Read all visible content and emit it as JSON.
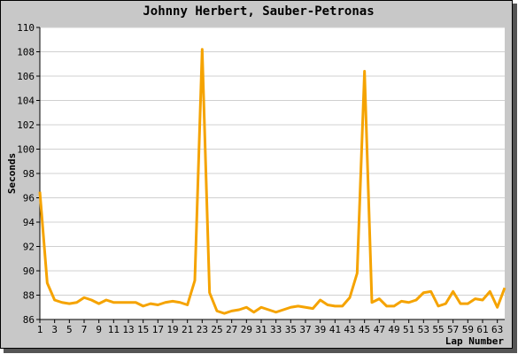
{
  "chart_data": {
    "type": "line",
    "title": "Johnny Herbert, Sauber-Petronas",
    "x_label": "Lap Number",
    "y_label": "Seconds",
    "x": [
      1,
      2,
      3,
      4,
      5,
      6,
      7,
      8,
      9,
      10,
      11,
      12,
      13,
      14,
      15,
      16,
      17,
      18,
      19,
      20,
      21,
      22,
      23,
      24,
      25,
      26,
      27,
      28,
      29,
      30,
      31,
      32,
      33,
      34,
      35,
      36,
      37,
      38,
      39,
      40,
      41,
      42,
      43,
      44,
      45,
      46,
      47,
      48,
      49,
      50,
      51,
      52,
      53,
      54,
      55,
      56,
      57,
      58,
      59,
      60,
      61,
      62,
      63,
      64
    ],
    "series": [
      {
        "color": "#f5a300",
        "values": [
          96.5,
          89.0,
          87.6,
          87.4,
          87.3,
          87.4,
          87.8,
          87.6,
          87.3,
          87.6,
          87.4,
          87.4,
          87.4,
          87.4,
          87.1,
          87.3,
          87.2,
          87.4,
          87.5,
          87.4,
          87.2,
          89.2,
          108.2,
          88.2,
          86.7,
          86.5,
          86.7,
          86.8,
          87.0,
          86.6,
          87.0,
          86.8,
          86.6,
          86.8,
          87.0,
          87.1,
          87.0,
          86.9,
          87.6,
          87.2,
          87.1,
          87.1,
          87.8,
          89.8,
          106.4,
          87.4,
          87.7,
          87.1,
          87.1,
          87.5,
          87.4,
          87.6,
          88.2,
          88.3,
          87.1,
          87.3,
          88.3,
          87.3,
          87.3,
          87.7,
          87.6,
          88.3,
          87.0,
          88.6
        ]
      }
    ],
    "xlim": [
      1,
      64
    ],
    "xticks": [
      1,
      3,
      5,
      7,
      9,
      11,
      13,
      15,
      17,
      19,
      21,
      23,
      25,
      27,
      29,
      31,
      33,
      35,
      37,
      39,
      41,
      43,
      45,
      47,
      49,
      51,
      53,
      55,
      57,
      59,
      61,
      63
    ],
    "ylim": [
      86,
      110
    ],
    "yticks": [
      86,
      88,
      90,
      92,
      94,
      96,
      98,
      100,
      102,
      104,
      106,
      108,
      110
    ],
    "grid": true
  }
}
